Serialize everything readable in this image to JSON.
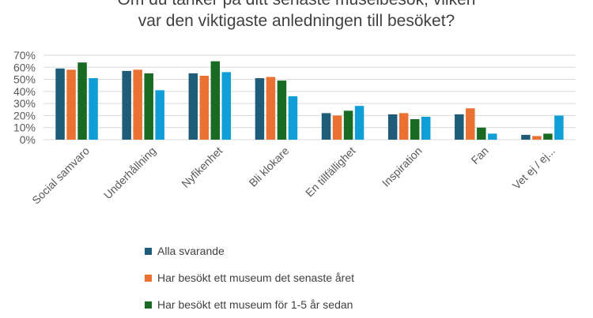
{
  "chart_data": {
    "type": "bar",
    "title": "Om du tänker på ditt senaste museibesök, vilken var den viktigaste anledningen till besöket?",
    "title_lines": [
      "Om du tänker på ditt senaste museibesök, vilken",
      "var den viktigaste anledningen till besöket?"
    ],
    "categories": [
      "Social samvaro",
      "Underhållning",
      "Nyfikenhet",
      "Bli klokare",
      "En tillfällighet",
      "Inspiration",
      "Fan",
      "Vet ej / ej..."
    ],
    "y_ticks": [
      "0%",
      "10%",
      "20%",
      "30%",
      "40%",
      "50%",
      "60%",
      "70%"
    ],
    "ylim": [
      0,
      70
    ],
    "grid": true,
    "legend_position": "bottom",
    "series": [
      {
        "name": "Alla svarande",
        "color": "#1F5C7A",
        "values": [
          59,
          57,
          55,
          51,
          22,
          21,
          21,
          4
        ]
      },
      {
        "name": "Har besökt ett museum det senaste året",
        "color": "#E97132",
        "values": [
          58,
          58,
          53,
          52,
          20,
          22,
          26,
          3
        ]
      },
      {
        "name": "Har besökt ett museum för 1-5 år sedan",
        "color": "#196B24",
        "values": [
          64,
          55,
          65,
          49,
          24,
          17,
          10,
          5
        ]
      },
      {
        "name": "",
        "color": "#0F9ED5",
        "values": [
          51,
          41,
          56,
          36,
          28,
          19,
          5,
          20
        ]
      }
    ]
  }
}
